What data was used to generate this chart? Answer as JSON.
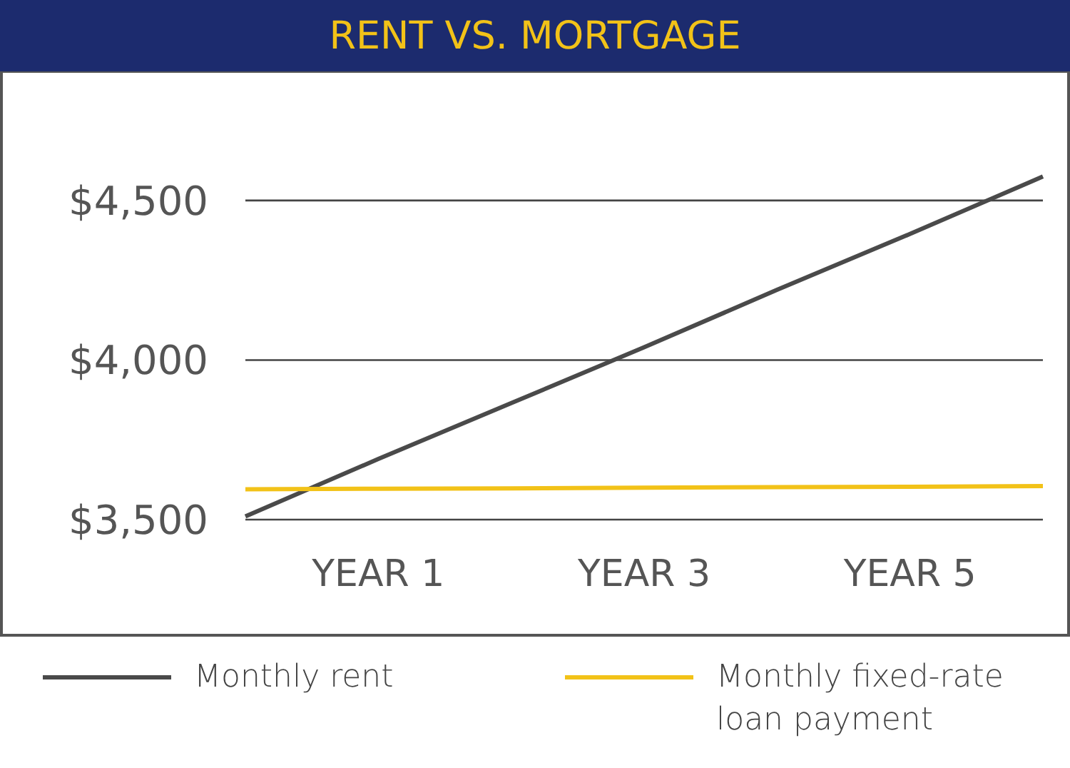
{
  "chart_data": {
    "type": "line",
    "title": "RENT VS. MORTGAGE",
    "categories": [
      null,
      "YEAR 1",
      null,
      "YEAR 3",
      null,
      "YEAR 5",
      null
    ],
    "ylim": [
      3500,
      4900
    ],
    "yticks": [
      {
        "value": 3500,
        "label": "$3,500"
      },
      {
        "value": 4000,
        "label": "$4,000"
      },
      {
        "value": 4500,
        "label": "$4,500"
      }
    ],
    "series": [
      {
        "name": "Monthly rent",
        "color": "#4a4a4a",
        "values": [
          3510,
          3690,
          3865,
          4040,
          4220,
          4395,
          4575
        ]
      },
      {
        "name": "Monthly fixed-rate loan payment",
        "color": "#f2c218",
        "values": [
          3595,
          3597,
          3598,
          3600,
          3602,
          3603,
          3605
        ]
      }
    ],
    "grid": "y",
    "legend": "bottom",
    "marker": "none",
    "line_style": "solid"
  }
}
